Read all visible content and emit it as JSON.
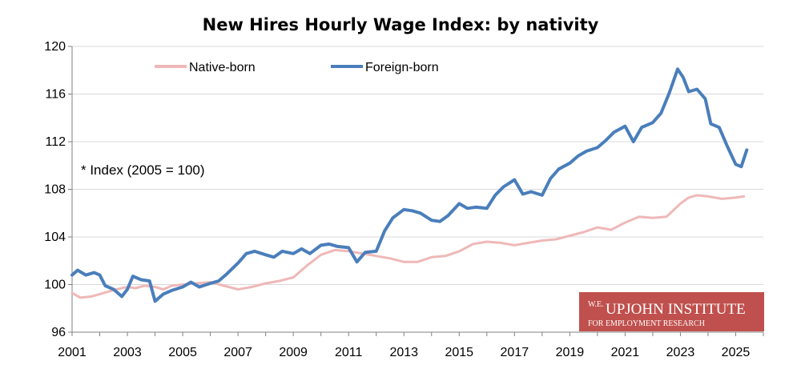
{
  "colors": {
    "native": "#efb8b8",
    "foreign": "#4a7ebb",
    "grid": "#d9d9d9",
    "axis": "#808080",
    "logo_bg": "#c0504d"
  },
  "logo": {
    "prefix": "W.E.",
    "name": "UPJOHN INSTITUTE",
    "tagline": "FOR EMPLOYMENT RESEARCH"
  },
  "chart_data": {
    "type": "line",
    "title": "New Hires Hourly Wage Index: by nativity",
    "note": "* Index (2005 = 100)",
    "xlabel": "",
    "ylabel": "",
    "xlim": [
      2001,
      2026
    ],
    "ylim": [
      96,
      120
    ],
    "x_ticks": [
      "2001",
      "2003",
      "2005",
      "2007",
      "2009",
      "2011",
      "2013",
      "2015",
      "2017",
      "2019",
      "2021",
      "2023",
      "2025"
    ],
    "y_ticks": [
      "96",
      "100",
      "104",
      "108",
      "112",
      "116",
      "120"
    ],
    "grid": "horizontal",
    "legend": "top",
    "series": [
      {
        "name": "Native-born",
        "x": [
          2001.0,
          2001.3,
          2001.7,
          2002.0,
          2002.3,
          2002.6,
          2003.0,
          2003.3,
          2003.6,
          2004.0,
          2004.3,
          2004.6,
          2005.0,
          2005.5,
          2006.0,
          2006.5,
          2007.0,
          2007.5,
          2008.0,
          2008.5,
          2009.0,
          2009.5,
          2010.0,
          2010.5,
          2011.0,
          2011.5,
          2012.0,
          2012.5,
          2013.0,
          2013.5,
          2014.0,
          2014.5,
          2015.0,
          2015.5,
          2016.0,
          2016.5,
          2017.0,
          2017.5,
          2018.0,
          2018.5,
          2019.0,
          2019.5,
          2020.0,
          2020.5,
          2021.0,
          2021.5,
          2022.0,
          2022.5,
          2023.0,
          2023.3,
          2023.6,
          2024.0,
          2024.5,
          2025.0,
          2025.3
        ],
        "values": [
          99.3,
          98.9,
          99.0,
          99.2,
          99.4,
          99.6,
          99.8,
          99.7,
          99.9,
          99.8,
          99.6,
          99.9,
          100.0,
          100.1,
          100.2,
          99.9,
          99.6,
          99.8,
          100.1,
          100.3,
          100.6,
          101.6,
          102.5,
          102.9,
          102.8,
          102.6,
          102.4,
          102.2,
          101.9,
          101.9,
          102.3,
          102.4,
          102.8,
          103.4,
          103.6,
          103.5,
          103.3,
          103.5,
          103.7,
          103.8,
          104.1,
          104.4,
          104.8,
          104.6,
          105.2,
          105.7,
          105.6,
          105.7,
          106.8,
          107.3,
          107.5,
          107.4,
          107.2,
          107.3,
          107.4
        ]
      },
      {
        "name": "Foreign-born",
        "x": [
          2001.0,
          2001.2,
          2001.5,
          2001.8,
          2002.0,
          2002.2,
          2002.5,
          2002.8,
          2003.0,
          2003.2,
          2003.5,
          2003.8,
          2004.0,
          2004.3,
          2004.6,
          2005.0,
          2005.3,
          2005.6,
          2006.0,
          2006.3,
          2006.6,
          2007.0,
          2007.3,
          2007.6,
          2008.0,
          2008.3,
          2008.6,
          2009.0,
          2009.3,
          2009.6,
          2010.0,
          2010.3,
          2010.6,
          2011.0,
          2011.3,
          2011.6,
          2012.0,
          2012.3,
          2012.6,
          2013.0,
          2013.3,
          2013.6,
          2014.0,
          2014.3,
          2014.6,
          2015.0,
          2015.3,
          2015.6,
          2016.0,
          2016.3,
          2016.6,
          2017.0,
          2017.3,
          2017.6,
          2018.0,
          2018.3,
          2018.6,
          2019.0,
          2019.3,
          2019.6,
          2020.0,
          2020.3,
          2020.6,
          2021.0,
          2021.3,
          2021.6,
          2022.0,
          2022.3,
          2022.6,
          2022.9,
          2023.1,
          2023.3,
          2023.6,
          2023.9,
          2024.1,
          2024.4,
          2024.7,
          2025.0,
          2025.2,
          2025.4
        ],
        "values": [
          100.8,
          101.2,
          100.8,
          101.0,
          100.8,
          99.9,
          99.6,
          99.0,
          99.6,
          100.7,
          100.4,
          100.3,
          98.6,
          99.2,
          99.5,
          99.8,
          100.2,
          99.8,
          100.1,
          100.3,
          100.9,
          101.8,
          102.6,
          102.8,
          102.5,
          102.3,
          102.8,
          102.6,
          103.0,
          102.6,
          103.3,
          103.4,
          103.2,
          103.1,
          101.9,
          102.7,
          102.8,
          104.5,
          105.6,
          106.3,
          106.2,
          106.0,
          105.4,
          105.3,
          105.8,
          106.8,
          106.4,
          106.5,
          106.4,
          107.5,
          108.2,
          108.8,
          107.6,
          107.8,
          107.5,
          108.9,
          109.7,
          110.2,
          110.8,
          111.2,
          111.5,
          112.1,
          112.8,
          113.3,
          112.0,
          113.2,
          113.6,
          114.4,
          116.1,
          118.1,
          117.4,
          116.2,
          116.4,
          115.6,
          113.5,
          113.2,
          111.6,
          110.1,
          109.9,
          111.3
        ]
      }
    ]
  }
}
